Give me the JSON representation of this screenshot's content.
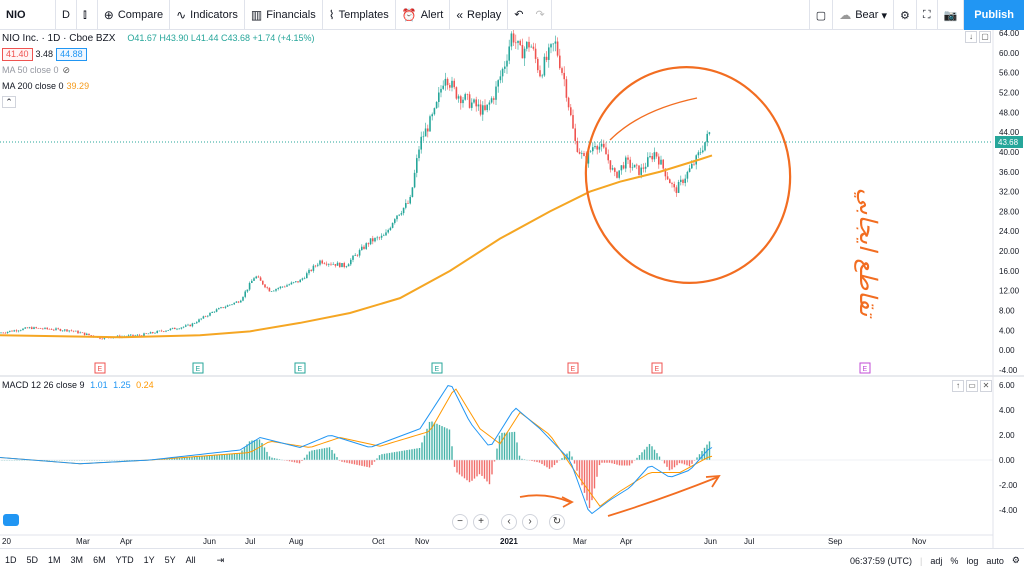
{
  "toolbar": {
    "symbol": "NIO",
    "interval": "D",
    "compare": "Compare",
    "indicators": "Indicators",
    "financials": "Financials",
    "templates": "Templates",
    "alert": "Alert",
    "replay": "Replay",
    "theme": "Bear",
    "publish": "Publish"
  },
  "legend": {
    "title": "NIO Inc.  ·  1D  ·  Cboe BZX",
    "bid": "41.40",
    "spread": "3.48",
    "ask": "44.88",
    "ohlc": "O41.67  H43.90  L41.44  C43.68  +1.74 (+4.15%)",
    "ma50": "MA 50 close 0",
    "ma200_label": "MA 200 close 0",
    "ma200_value": "39.29"
  },
  "macd_legend": {
    "label": "MACD 12 26 close 9",
    "v1": "1.01",
    "v2": "1.25",
    "v3": "0.24"
  },
  "price_axis": [
    "64.00",
    "60.00",
    "56.00",
    "52.00",
    "48.00",
    "44.00",
    "40.00",
    "36.00",
    "32.00",
    "28.00",
    "24.00",
    "20.00",
    "16.00",
    "12.00",
    "8.00",
    "4.00",
    "0.00",
    "-4.00"
  ],
  "current_price": "43.68",
  "macd_axis": [
    "6.00",
    "4.00",
    "2.00",
    "0.00",
    "-2.00",
    "-4.00"
  ],
  "time_axis": [
    "20",
    "Mar",
    "Apr",
    "Jun",
    "Jul",
    "Aug",
    "Oct",
    "Nov",
    "2021",
    "Mar",
    "Apr",
    "Jun",
    "Jul",
    "Sep",
    "Nov"
  ],
  "annotation_text": "تقاطع ايجابي",
  "bottombar": {
    "ranges": [
      "1D",
      "5D",
      "1M",
      "3M",
      "6M",
      "YTD",
      "1Y",
      "5Y",
      "All"
    ],
    "time": "06:37:59 (UTC)",
    "adj": "adj",
    "pct": "%",
    "log": "log",
    "auto": "auto"
  },
  "colors": {
    "up": "#26a69a",
    "down": "#ef5350",
    "ma200": "#f5a623",
    "annotation": "#f26d21",
    "macd_line": "#2196f3",
    "signal_line": "#ff9800"
  }
}
